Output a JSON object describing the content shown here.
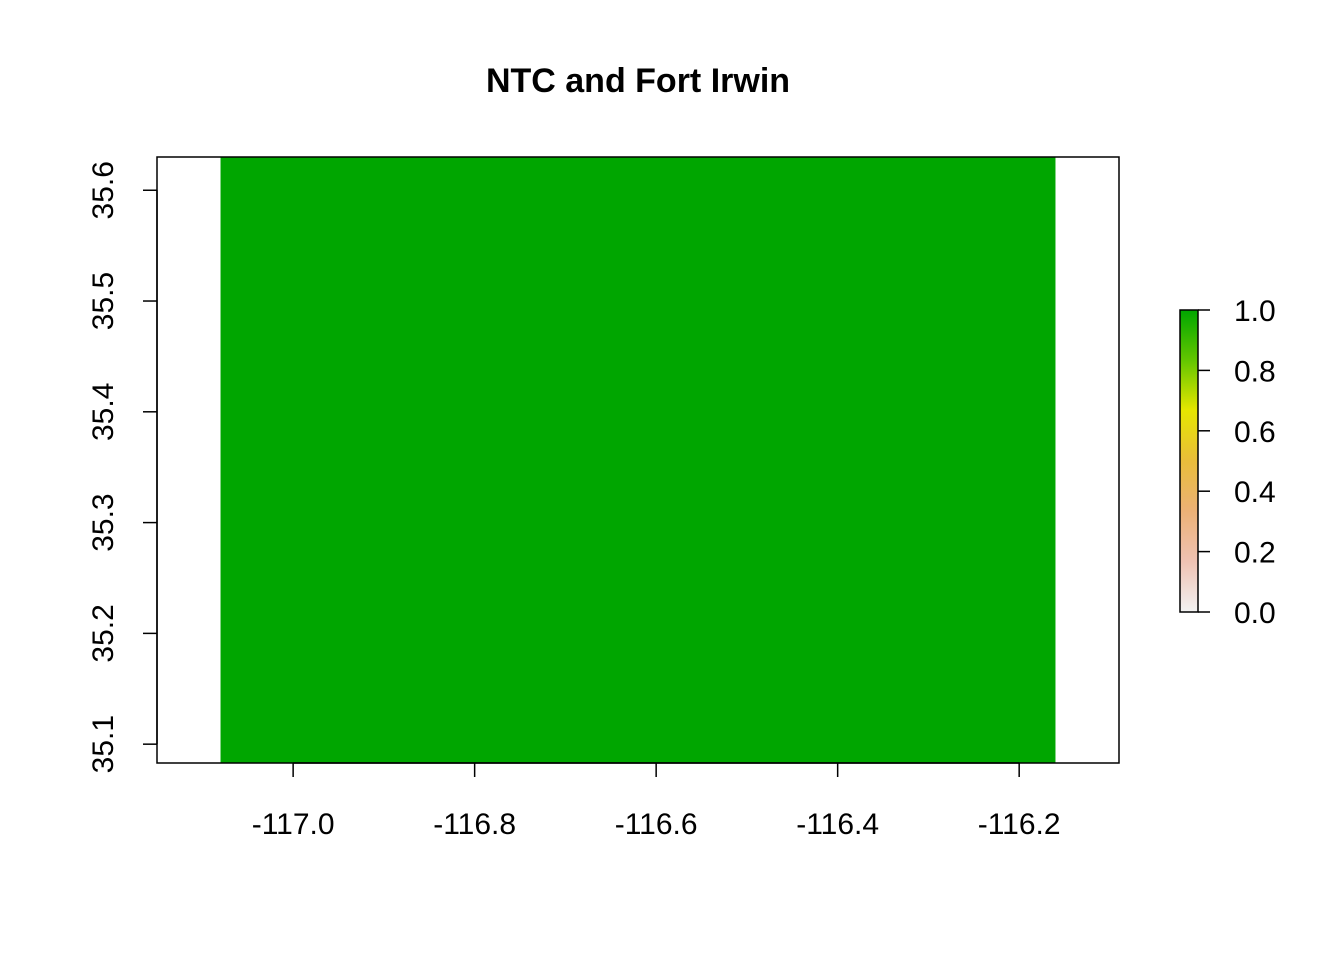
{
  "chart_data": {
    "type": "heatmap",
    "title": "NTC and Fort Irwin",
    "xlabel": "",
    "ylabel": "",
    "xlim": [
      -117.15,
      -116.09
    ],
    "ylim": [
      35.083,
      35.63
    ],
    "x_ticks": [
      -117.0,
      -116.8,
      -116.6,
      -116.4,
      -116.2
    ],
    "x_tick_labels": [
      "-117.0",
      "-116.8",
      "-116.6",
      "-116.4",
      "-116.2"
    ],
    "y_ticks": [
      35.1,
      35.2,
      35.3,
      35.4,
      35.5,
      35.6
    ],
    "y_tick_labels": [
      "35.1",
      "35.2",
      "35.3",
      "35.4",
      "35.5",
      "35.6"
    ],
    "raster": {
      "extent": {
        "xmin": -117.08,
        "xmax": -116.16,
        "ymin": 35.083,
        "ymax": 35.63
      },
      "value": 1.0,
      "color": "#00A600"
    },
    "legend": {
      "type": "colorbar",
      "placement": "right",
      "range": [
        0,
        1
      ],
      "ticks": [
        0.0,
        0.2,
        0.4,
        0.6,
        0.8,
        1.0
      ],
      "tick_labels": [
        "0.0",
        "0.2",
        "0.4",
        "0.6",
        "0.8",
        "1.0"
      ],
      "palette": [
        "#F2F2F2",
        "#EFC2B3",
        "#ECB176",
        "#E9BD3A",
        "#E6E600",
        "#63C600",
        "#00A600"
      ]
    },
    "grid": false
  }
}
